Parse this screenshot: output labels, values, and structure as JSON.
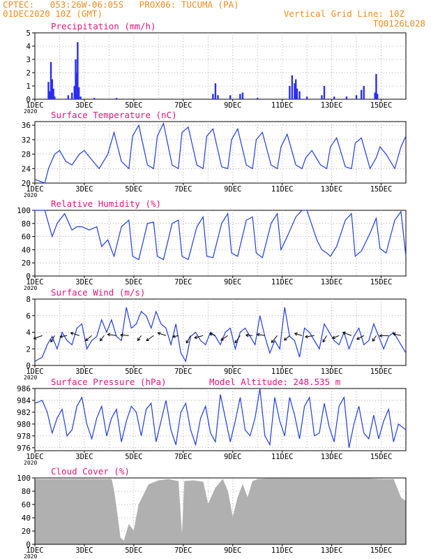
{
  "header": {
    "line1": "CPTEC:   053:26W-06:05S   PROX06: TUCUMA (PA)",
    "line2_left": "01DEC2020 10Z (GMT)",
    "line2_right": "Vertical Grid Line: 10Z",
    "line3_right": "TQ0126L028",
    "color": "#f08c1e"
  },
  "colors": {
    "line": "#1f3ce0",
    "bar": "#2a2ef0",
    "title": "#e8147a",
    "arrow": "#000000",
    "cloud": "#b0b0b0",
    "grid": "#999999"
  },
  "x_ticks": [
    "1DEC",
    "3DEC",
    "5DEC",
    "7DEC",
    "9DEC",
    "11DEC",
    "13DEC",
    "15DEC"
  ],
  "x_tick_sub": "2020",
  "chart_data": [
    {
      "type": "bar",
      "title": "Precipitation (mm/h)",
      "ylim": [
        0,
        5
      ],
      "yticks": [
        "0",
        "1",
        "2",
        "3",
        "4",
        "5"
      ],
      "x_range_days": [
        1.0,
        16.0
      ],
      "values": [
        {
          "day": 1.55,
          "v": 1.3
        },
        {
          "day": 1.6,
          "v": 0.6
        },
        {
          "day": 1.65,
          "v": 2.8
        },
        {
          "day": 1.7,
          "v": 1.5
        },
        {
          "day": 1.75,
          "v": 0.8
        },
        {
          "day": 1.8,
          "v": 0.2
        },
        {
          "day": 2.35,
          "v": 0.3
        },
        {
          "day": 2.5,
          "v": 0.5
        },
        {
          "day": 2.6,
          "v": 1.0
        },
        {
          "day": 2.65,
          "v": 3.0
        },
        {
          "day": 2.7,
          "v": 2.0
        },
        {
          "day": 2.73,
          "v": 4.3
        },
        {
          "day": 2.78,
          "v": 0.9
        },
        {
          "day": 2.85,
          "v": 0.2
        },
        {
          "day": 3.4,
          "v": 0.1
        },
        {
          "day": 4.3,
          "v": 0.1
        },
        {
          "day": 8.2,
          "v": 0.4
        },
        {
          "day": 8.3,
          "v": 1.2
        },
        {
          "day": 8.4,
          "v": 0.3
        },
        {
          "day": 8.9,
          "v": 0.3
        },
        {
          "day": 9.3,
          "v": 0.4
        },
        {
          "day": 9.4,
          "v": 0.5
        },
        {
          "day": 10.0,
          "v": 0.1
        },
        {
          "day": 11.3,
          "v": 1.0
        },
        {
          "day": 11.4,
          "v": 1.8
        },
        {
          "day": 11.5,
          "v": 1.2
        },
        {
          "day": 11.55,
          "v": 1.5
        },
        {
          "day": 11.6,
          "v": 0.8
        },
        {
          "day": 11.7,
          "v": 0.6
        },
        {
          "day": 12.0,
          "v": 0.2
        },
        {
          "day": 12.6,
          "v": 0.3
        },
        {
          "day": 12.7,
          "v": 1.0
        },
        {
          "day": 13.1,
          "v": 0.2
        },
        {
          "day": 13.6,
          "v": 0.2
        },
        {
          "day": 14.0,
          "v": 0.3
        },
        {
          "day": 14.2,
          "v": 0.7
        },
        {
          "day": 14.3,
          "v": 1.0
        },
        {
          "day": 14.75,
          "v": 0.5
        },
        {
          "day": 14.8,
          "v": 1.9
        },
        {
          "day": 14.85,
          "v": 0.4
        }
      ]
    },
    {
      "type": "line",
      "title": "Surface Temperature (nC)",
      "ylim": [
        20,
        37
      ],
      "yticks": [
        "20",
        "24",
        "28",
        "32",
        "36"
      ],
      "x": [
        1.0,
        1.4,
        1.55,
        1.8,
        2.0,
        2.25,
        2.5,
        2.8,
        3.0,
        3.35,
        3.6,
        3.95,
        4.2,
        4.5,
        4.8,
        4.95,
        5.2,
        5.55,
        5.8,
        5.95,
        6.2,
        6.55,
        6.8,
        6.95,
        7.2,
        7.55,
        7.8,
        7.95,
        8.2,
        8.55,
        8.8,
        8.95,
        9.2,
        9.55,
        9.8,
        9.95,
        10.2,
        10.55,
        10.8,
        10.95,
        11.2,
        11.55,
        11.8,
        11.95,
        12.2,
        12.55,
        12.8,
        12.95,
        13.2,
        13.55,
        13.8,
        13.95,
        14.2,
        14.55,
        14.8,
        14.95,
        15.2,
        15.55,
        15.8,
        16.0
      ],
      "y": [
        21,
        20,
        24,
        28,
        29,
        26,
        25,
        28,
        29,
        26,
        24,
        28,
        34,
        26,
        24,
        33,
        36,
        25,
        24,
        33,
        36.5,
        25,
        24,
        34,
        35.5,
        25,
        24,
        33,
        35,
        24.5,
        24,
        32,
        35,
        25,
        24,
        32,
        34,
        25,
        24,
        30,
        33.5,
        25,
        24,
        27,
        29,
        25,
        24,
        30,
        32.5,
        24.5,
        24,
        31,
        32.5,
        24,
        27,
        30,
        28,
        24,
        30,
        33
      ]
    },
    {
      "type": "line",
      "title": "Relative Humidity (%)",
      "ylim": [
        0,
        100
      ],
      "yticks": [
        "0",
        "20",
        "40",
        "60",
        "80",
        "100"
      ],
      "x": [
        1.0,
        1.4,
        1.7,
        1.9,
        2.2,
        2.5,
        2.7,
        2.9,
        3.2,
        3.5,
        3.7,
        3.95,
        4.2,
        4.5,
        4.8,
        4.95,
        5.2,
        5.55,
        5.8,
        5.95,
        6.2,
        6.55,
        6.8,
        6.95,
        7.2,
        7.55,
        7.8,
        7.95,
        8.2,
        8.55,
        8.8,
        8.95,
        9.2,
        9.55,
        9.8,
        9.95,
        10.2,
        10.55,
        10.8,
        10.95,
        11.2,
        11.55,
        11.8,
        12.0,
        12.4,
        12.6,
        12.8,
        12.95,
        13.2,
        13.55,
        13.8,
        13.95,
        14.2,
        14.55,
        14.8,
        14.95,
        15.2,
        15.55,
        15.8,
        16.0
      ],
      "y": [
        100,
        100,
        60,
        80,
        95,
        70,
        75,
        75,
        70,
        75,
        45,
        55,
        30,
        75,
        85,
        30,
        25,
        80,
        82,
        30,
        25,
        80,
        85,
        30,
        25,
        75,
        90,
        30,
        28,
        80,
        95,
        35,
        30,
        85,
        90,
        35,
        28,
        80,
        95,
        40,
        60,
        90,
        100,
        100,
        55,
        40,
        35,
        30,
        45,
        85,
        95,
        30,
        38,
        65,
        88,
        42,
        35,
        85,
        98,
        30
      ]
    },
    {
      "type": "line",
      "title": "Surface Wind (m/s)",
      "ylim": [
        0,
        8
      ],
      "yticks": [
        "0",
        "2",
        "4",
        "6",
        "8"
      ],
      "x": [
        1.0,
        1.3,
        1.5,
        1.7,
        1.9,
        2.1,
        2.3,
        2.5,
        2.7,
        2.9,
        3.1,
        3.3,
        3.5,
        3.7,
        3.9,
        4.1,
        4.3,
        4.5,
        4.7,
        4.9,
        5.1,
        5.3,
        5.5,
        5.7,
        5.9,
        6.1,
        6.3,
        6.5,
        6.7,
        6.9,
        7.1,
        7.3,
        7.5,
        7.7,
        7.9,
        8.1,
        8.3,
        8.5,
        8.7,
        8.9,
        9.1,
        9.3,
        9.5,
        9.7,
        9.9,
        10.1,
        10.3,
        10.5,
        10.7,
        10.9,
        11.1,
        11.3,
        11.5,
        11.7,
        11.9,
        12.1,
        12.3,
        12.5,
        12.7,
        12.9,
        13.1,
        13.3,
        13.5,
        13.7,
        13.9,
        14.1,
        14.3,
        14.5,
        14.7,
        14.9,
        15.1,
        15.3,
        15.5,
        15.7,
        16.0
      ],
      "y": [
        0.5,
        1.0,
        2.5,
        3.5,
        2.0,
        4.0,
        3.0,
        2.5,
        4.5,
        5.0,
        2.0,
        3.0,
        3.5,
        5.5,
        4.0,
        5.5,
        3.5,
        3.0,
        7.0,
        4.5,
        5.0,
        6.5,
        6.0,
        4.5,
        6.5,
        5.0,
        4.5,
        2.5,
        5.0,
        1.5,
        0.5,
        3.5,
        4.0,
        3.0,
        2.5,
        4.0,
        3.5,
        2.5,
        4.0,
        4.5,
        2.0,
        4.0,
        4.5,
        3.5,
        2.5,
        6.0,
        3.5,
        1.5,
        3.0,
        2.0,
        7.0,
        3.5,
        3.0,
        1.0,
        4.5,
        4.0,
        3.0,
        2.0,
        5.0,
        4.0,
        3.0,
        2.5,
        4.0,
        2.0,
        3.5,
        4.5,
        2.5,
        3.0,
        5.0,
        3.5,
        2.0,
        3.5,
        4.0,
        3.0,
        1.5
      ]
    },
    {
      "type": "line",
      "title": "Surface Pressure (hPa)",
      "annotation": "Model Altitude: 248.535 m",
      "ylim": [
        975.5,
        986
      ],
      "yticks": [
        "976",
        "978",
        "980",
        "982",
        "984",
        "986"
      ],
      "x": [
        1.0,
        1.3,
        1.5,
        1.7,
        1.9,
        2.1,
        2.3,
        2.5,
        2.7,
        2.9,
        3.1,
        3.3,
        3.5,
        3.7,
        3.9,
        4.1,
        4.3,
        4.5,
        4.7,
        4.9,
        5.1,
        5.3,
        5.5,
        5.7,
        5.9,
        6.1,
        6.3,
        6.5,
        6.7,
        6.9,
        7.1,
        7.3,
        7.5,
        7.7,
        7.9,
        8.1,
        8.3,
        8.5,
        8.7,
        8.9,
        9.1,
        9.3,
        9.5,
        9.7,
        9.9,
        10.1,
        10.3,
        10.5,
        10.7,
        10.9,
        11.1,
        11.3,
        11.5,
        11.7,
        11.9,
        12.1,
        12.3,
        12.5,
        12.7,
        12.9,
        13.1,
        13.3,
        13.5,
        13.7,
        13.9,
        14.1,
        14.3,
        14.5,
        14.7,
        14.9,
        15.1,
        15.3,
        15.5,
        15.7,
        16.0
      ],
      "y": [
        983.5,
        984.0,
        982.0,
        978.5,
        981.0,
        982.5,
        978.0,
        979.0,
        983.0,
        984.5,
        980.0,
        977.5,
        981.0,
        983.0,
        978.0,
        981.0,
        982.5,
        977.0,
        980.5,
        983.0,
        982.0,
        978.0,
        982.5,
        983.5,
        977.0,
        980.5,
        984.0,
        979.0,
        976.5,
        982.0,
        983.5,
        979.0,
        976.5,
        981.0,
        983.0,
        978.5,
        977.0,
        985.0,
        981.0,
        977.0,
        980.5,
        984.5,
        979.0,
        978.0,
        981.0,
        986.0,
        978.0,
        976.5,
        984.5,
        980.5,
        978.0,
        984.5,
        981.5,
        977.5,
        983.0,
        984.5,
        978.0,
        978.5,
        983.5,
        979.5,
        977.0,
        983.0,
        984.5,
        976.0,
        980.0,
        983.0,
        978.5,
        977.5,
        981.5,
        977.5,
        980.5,
        982.5,
        977.0,
        980.0,
        979.0
      ]
    },
    {
      "type": "area",
      "title": "Cloud Cover (%)",
      "ylim": [
        0,
        100
      ],
      "yticks": [
        "0",
        "20",
        "40",
        "60",
        "80",
        "100"
      ],
      "x": [
        1.0,
        4.1,
        4.2,
        4.35,
        4.45,
        4.6,
        4.8,
        5.0,
        5.2,
        5.4,
        5.6,
        6.0,
        6.4,
        6.8,
        6.95,
        7.05,
        7.4,
        7.8,
        8.0,
        8.3,
        8.6,
        8.8,
        9.0,
        9.2,
        9.4,
        9.6,
        9.8,
        10.0,
        10.4,
        11.0,
        12.0,
        13.0,
        14.0,
        14.5,
        15.0,
        15.5,
        15.8,
        16.0
      ],
      "y": [
        98,
        98,
        80,
        40,
        10,
        5,
        30,
        20,
        60,
        75,
        90,
        96,
        98,
        95,
        10,
        95,
        96,
        94,
        60,
        85,
        98,
        80,
        40,
        70,
        90,
        70,
        95,
        98,
        99,
        99,
        99,
        99,
        99,
        99,
        98,
        98,
        70,
        65
      ]
    }
  ]
}
